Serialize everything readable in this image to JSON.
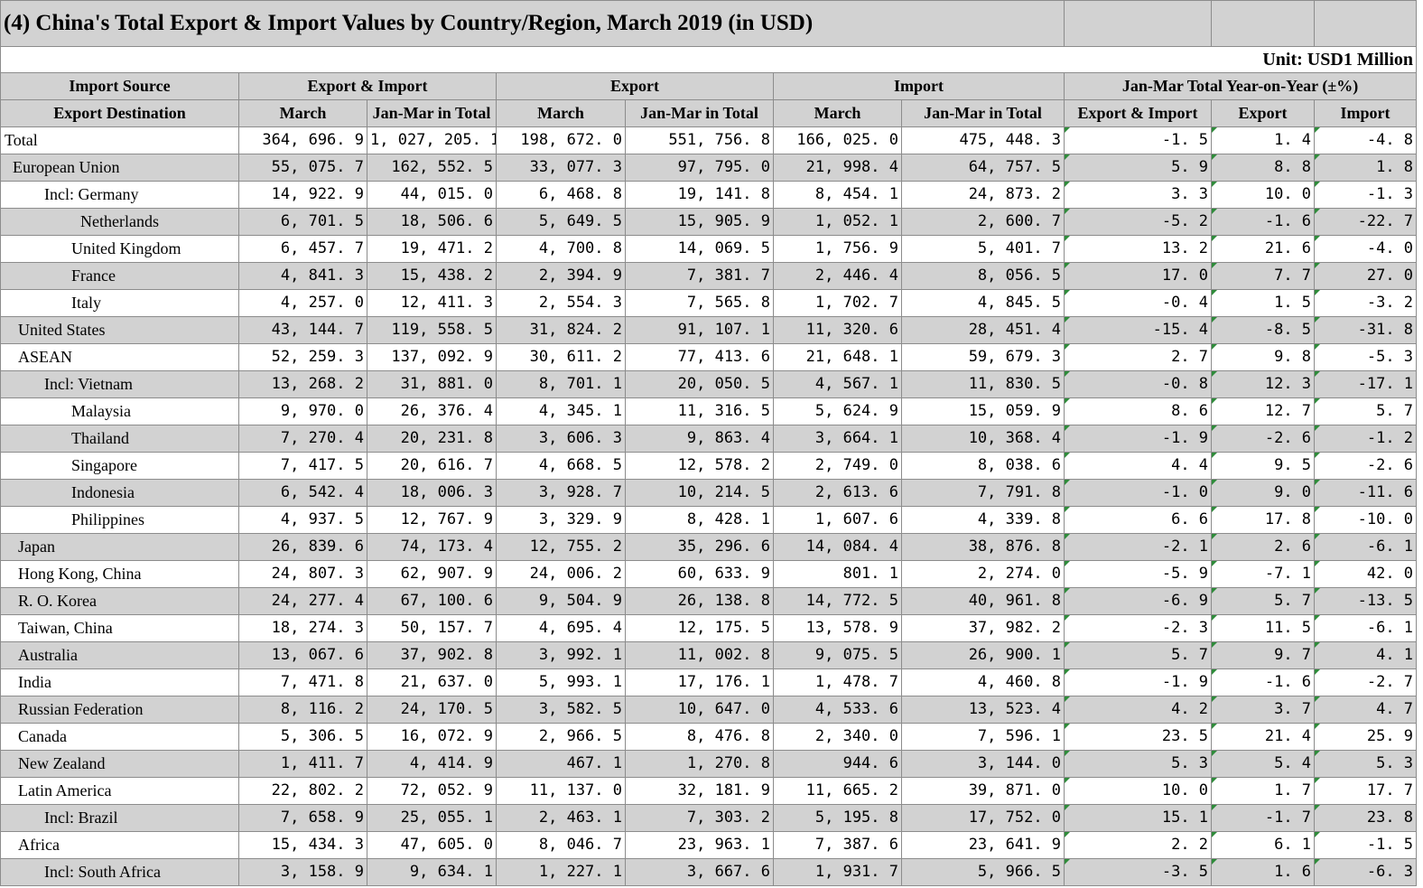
{
  "title": "(4) China's Total Export & Import Values by Country/Region, March 2019 (in USD)",
  "unit": "Unit: USD1 Million",
  "header_top": {
    "source": "Import Source",
    "export_import": "Export & Import",
    "export": "Export",
    "import": "Import",
    "yoy": "Jan-Mar Total Year-on-Year (±%)"
  },
  "header_sub": {
    "destination": "Export Destination",
    "ei_march": "March",
    "ei_total": "Jan-Mar in Total",
    "ex_march": "March",
    "ex_total": "Jan-Mar in Total",
    "im_march": "March",
    "im_total": "Jan-Mar in Total",
    "yoy_ei": "Export & Import",
    "yoy_ex": "Export",
    "yoy_im": "Import"
  },
  "rows": [
    {
      "name": "Total",
      "indent": 0,
      "shade": false,
      "values": [
        "364, 696. 9",
        "1, 027, 205. 1",
        "198, 672. 0",
        "551, 756. 8",
        "166, 025. 0",
        "475, 448. 3",
        "-1. 5",
        "1. 4",
        "-4. 8"
      ]
    },
    {
      "name": "European Union",
      "indent": 1,
      "shade": true,
      "values": [
        "55, 075. 7",
        "162, 552. 5",
        "33, 077. 3",
        "97, 795. 0",
        "21, 998. 4",
        "64, 757. 5",
        "5. 9",
        "8. 8",
        "1. 8"
      ]
    },
    {
      "name": "Incl: Germany",
      "indent": 3,
      "shade": false,
      "values": [
        "14, 922. 9",
        "44, 015. 0",
        "6, 468. 8",
        "19, 141. 8",
        "8, 454. 1",
        "24, 873. 2",
        "3. 3",
        "10. 0",
        "-1. 3"
      ]
    },
    {
      "name": "Netherlands",
      "indent": 5,
      "shade": true,
      "values": [
        "6, 701. 5",
        "18, 506. 6",
        "5, 649. 5",
        "15, 905. 9",
        "1, 052. 1",
        "2, 600. 7",
        "-5. 2",
        "-1. 6",
        "-22. 7"
      ]
    },
    {
      "name": "United Kingdom",
      "indent": 4,
      "shade": false,
      "values": [
        "6, 457. 7",
        "19, 471. 2",
        "4, 700. 8",
        "14, 069. 5",
        "1, 756. 9",
        "5, 401. 7",
        "13. 2",
        "21. 6",
        "-4. 0"
      ]
    },
    {
      "name": "France",
      "indent": 4,
      "shade": true,
      "values": [
        "4, 841. 3",
        "15, 438. 2",
        "2, 394. 9",
        "7, 381. 7",
        "2, 446. 4",
        "8, 056. 5",
        "17. 0",
        "7. 7",
        "27. 0"
      ]
    },
    {
      "name": "Italy",
      "indent": 4,
      "shade": false,
      "values": [
        "4, 257. 0",
        "12, 411. 3",
        "2, 554. 3",
        "7, 565. 8",
        "1, 702. 7",
        "4, 845. 5",
        "-0. 4",
        "1. 5",
        "-3. 2"
      ]
    },
    {
      "name": "United States",
      "indent": 2,
      "shade": true,
      "values": [
        "43, 144. 7",
        "119, 558. 5",
        "31, 824. 2",
        "91, 107. 1",
        "11, 320. 6",
        "28, 451. 4",
        "-15. 4",
        "-8. 5",
        "-31. 8"
      ]
    },
    {
      "name": "ASEAN",
      "indent": 2,
      "shade": false,
      "values": [
        "52, 259. 3",
        "137, 092. 9",
        "30, 611. 2",
        "77, 413. 6",
        "21, 648. 1",
        "59, 679. 3",
        "2. 7",
        "9. 8",
        "-5. 3"
      ]
    },
    {
      "name": "Incl: Vietnam",
      "indent": 3,
      "shade": true,
      "values": [
        "13, 268. 2",
        "31, 881. 0",
        "8, 701. 1",
        "20, 050. 5",
        "4, 567. 1",
        "11, 830. 5",
        "-0. 8",
        "12. 3",
        "-17. 1"
      ]
    },
    {
      "name": "Malaysia",
      "indent": 4,
      "shade": false,
      "values": [
        "9, 970. 0",
        "26, 376. 4",
        "4, 345. 1",
        "11, 316. 5",
        "5, 624. 9",
        "15, 059. 9",
        "8. 6",
        "12. 7",
        "5. 7"
      ]
    },
    {
      "name": "Thailand",
      "indent": 4,
      "shade": true,
      "values": [
        "7, 270. 4",
        "20, 231. 8",
        "3, 606. 3",
        "9, 863. 4",
        "3, 664. 1",
        "10, 368. 4",
        "-1. 9",
        "-2. 6",
        "-1. 2"
      ]
    },
    {
      "name": "Singapore",
      "indent": 4,
      "shade": false,
      "values": [
        "7, 417. 5",
        "20, 616. 7",
        "4, 668. 5",
        "12, 578. 2",
        "2, 749. 0",
        "8, 038. 6",
        "4. 4",
        "9. 5",
        "-2. 6"
      ]
    },
    {
      "name": "Indonesia",
      "indent": 4,
      "shade": true,
      "values": [
        "6, 542. 4",
        "18, 006. 3",
        "3, 928. 7",
        "10, 214. 5",
        "2, 613. 6",
        "7, 791. 8",
        "-1. 0",
        "9. 0",
        "-11. 6"
      ]
    },
    {
      "name": "Philippines",
      "indent": 4,
      "shade": false,
      "values": [
        "4, 937. 5",
        "12, 767. 9",
        "3, 329. 9",
        "8, 428. 1",
        "1, 607. 6",
        "4, 339. 8",
        "6. 6",
        "17. 8",
        "-10. 0"
      ]
    },
    {
      "name": "Japan",
      "indent": 2,
      "shade": true,
      "values": [
        "26, 839. 6",
        "74, 173. 4",
        "12, 755. 2",
        "35, 296. 6",
        "14, 084. 4",
        "38, 876. 8",
        "-2. 1",
        "2. 6",
        "-6. 1"
      ]
    },
    {
      "name": "Hong Kong, China",
      "indent": 2,
      "shade": false,
      "values": [
        "24, 807. 3",
        "62, 907. 9",
        "24, 006. 2",
        "60, 633. 9",
        "801. 1",
        "2, 274. 0",
        "-5. 9",
        "-7. 1",
        "42. 0"
      ]
    },
    {
      "name": "R. O. Korea",
      "indent": 2,
      "shade": true,
      "values": [
        "24, 277. 4",
        "67, 100. 6",
        "9, 504. 9",
        "26, 138. 8",
        "14, 772. 5",
        "40, 961. 8",
        "-6. 9",
        "5. 7",
        "-13. 5"
      ]
    },
    {
      "name": "Taiwan, China",
      "indent": 2,
      "shade": false,
      "values": [
        "18, 274. 3",
        "50, 157. 7",
        "4, 695. 4",
        "12, 175. 5",
        "13, 578. 9",
        "37, 982. 2",
        "-2. 3",
        "11. 5",
        "-6. 1"
      ]
    },
    {
      "name": "Australia",
      "indent": 2,
      "shade": true,
      "values": [
        "13, 067. 6",
        "37, 902. 8",
        "3, 992. 1",
        "11, 002. 8",
        "9, 075. 5",
        "26, 900. 1",
        "5. 7",
        "9. 7",
        "4. 1"
      ]
    },
    {
      "name": "India",
      "indent": 2,
      "shade": false,
      "values": [
        "7, 471. 8",
        "21, 637. 0",
        "5, 993. 1",
        "17, 176. 1",
        "1, 478. 7",
        "4, 460. 8",
        "-1. 9",
        "-1. 6",
        "-2. 7"
      ]
    },
    {
      "name": "Russian Federation",
      "indent": 2,
      "shade": true,
      "values": [
        "8, 116. 2",
        "24, 170. 5",
        "3, 582. 5",
        "10, 647. 0",
        "4, 533. 6",
        "13, 523. 4",
        "4. 2",
        "3. 7",
        "4. 7"
      ]
    },
    {
      "name": "Canada",
      "indent": 2,
      "shade": false,
      "values": [
        "5, 306. 5",
        "16, 072. 9",
        "2, 966. 5",
        "8, 476. 8",
        "2, 340. 0",
        "7, 596. 1",
        "23. 5",
        "21. 4",
        "25. 9"
      ]
    },
    {
      "name": "New Zealand",
      "indent": 2,
      "shade": true,
      "values": [
        "1, 411. 7",
        "4, 414. 9",
        "467. 1",
        "1, 270. 8",
        "944. 6",
        "3, 144. 0",
        "5. 3",
        "5. 4",
        "5. 3"
      ]
    },
    {
      "name": "Latin America",
      "indent": 2,
      "shade": false,
      "values": [
        "22, 802. 2",
        "72, 052. 9",
        "11, 137. 0",
        "32, 181. 9",
        "11, 665. 2",
        "39, 871. 0",
        "10. 0",
        "1. 7",
        "17. 7"
      ]
    },
    {
      "name": "Incl: Brazil",
      "indent": 3,
      "shade": true,
      "values": [
        "7, 658. 9",
        "25, 055. 1",
        "2, 463. 1",
        "7, 303. 2",
        "5, 195. 8",
        "17, 752. 0",
        "15. 1",
        "-1. 7",
        "23. 8"
      ]
    },
    {
      "name": "Africa",
      "indent": 2,
      "shade": false,
      "values": [
        "15, 434. 3",
        "47, 605. 0",
        "8, 046. 7",
        "23, 963. 1",
        "7, 387. 6",
        "23, 641. 9",
        "2. 2",
        "6. 1",
        "-1. 5"
      ]
    },
    {
      "name": "Incl: South Africa",
      "indent": 3,
      "shade": true,
      "values": [
        "3, 158. 9",
        "9, 634. 1",
        "1, 227. 1",
        "3, 667. 6",
        "1, 931. 7",
        "5, 966. 5",
        "-3. 5",
        "1. 6",
        "-6. 3"
      ]
    }
  ]
}
